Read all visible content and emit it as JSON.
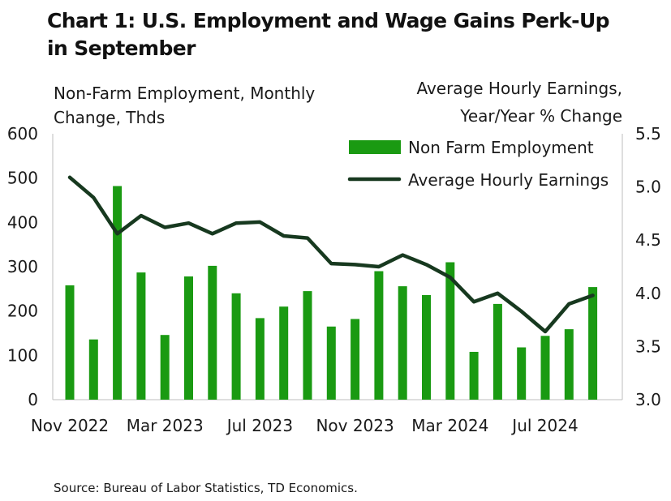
{
  "title": "Chart 1: U.S. Employment and Wage Gains Perk-Up in September",
  "source": "Source:  Bureau of Labor Statistics, TD Economics.",
  "colors": {
    "bar": "#1a9a12",
    "line": "#17391f"
  },
  "chart_data": {
    "type": "bar",
    "title": "Chart 1: U.S. Employment and Wage Gains Perk-Up in September",
    "ylabel_left": [
      "Non-Farm Employment, Monthly",
      "Change, Thds"
    ],
    "ylabel_right": [
      "Average Hourly Earnings,",
      "Year/Year % Change"
    ],
    "ylim_left": [
      0,
      600
    ],
    "yticks_left": [
      "600",
      "500",
      "400",
      "300",
      "200",
      "100",
      "0"
    ],
    "ylim_right": [
      3.0,
      5.5
    ],
    "yticks_right": [
      "5.5",
      "5.0",
      "4.5",
      "4.0",
      "3.5",
      "3.0"
    ],
    "xtick_labels": [
      "Nov 2022",
      "Mar 2023",
      "Jul 2023",
      "Nov 2023",
      "Mar 2024",
      "Jul 2024"
    ],
    "xtick_index": [
      0,
      4,
      8,
      12,
      16,
      20
    ],
    "categories": [
      "Nov 2022",
      "Dec 2022",
      "Jan 2023",
      "Feb 2023",
      "Mar 2023",
      "Apr 2023",
      "May 2023",
      "Jun 2023",
      "Jul 2023",
      "Aug 2023",
      "Sep 2023",
      "Oct 2023",
      "Nov 2023",
      "Dec 2023",
      "Jan 2024",
      "Feb 2024",
      "Mar 2024",
      "Apr 2024",
      "May 2024",
      "Jun 2024",
      "Jul 2024",
      "Aug 2024",
      "Sep 2024"
    ],
    "legend": [
      "Non Farm Employment",
      "Average Hourly Earnings"
    ],
    "series": [
      {
        "name": "Non Farm Employment",
        "type": "bar",
        "axis": "left",
        "values": [
          258,
          136,
          482,
          287,
          146,
          278,
          302,
          240,
          184,
          210,
          245,
          165,
          182,
          290,
          256,
          236,
          310,
          108,
          216,
          118,
          144,
          159,
          254
        ]
      },
      {
        "name": "Average Hourly Earnings",
        "type": "line",
        "axis": "right",
        "values": [
          5.09,
          4.9,
          4.56,
          4.73,
          4.62,
          4.66,
          4.56,
          4.66,
          4.67,
          4.54,
          4.52,
          4.28,
          4.27,
          4.25,
          4.36,
          4.27,
          4.15,
          3.92,
          4.0,
          3.83,
          3.64,
          3.9,
          3.98
        ]
      }
    ]
  }
}
